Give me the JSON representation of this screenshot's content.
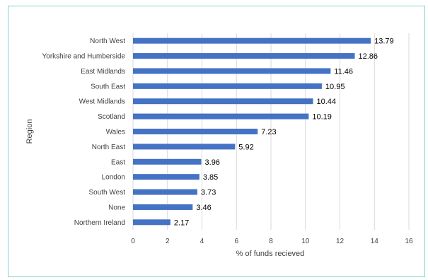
{
  "chart_data": {
    "type": "bar",
    "orientation": "horizontal",
    "xlabel": "% of funds recieved",
    "ylabel": "Region",
    "xlim": [
      0,
      16
    ],
    "x_ticks": [
      "0",
      "2",
      "4",
      "6",
      "8",
      "10",
      "12",
      "14",
      "16"
    ],
    "grid": true,
    "bar_color": "#4472c4",
    "categories": [
      "North West",
      "Yorkshire and Humberside",
      "East Midlands",
      "South East",
      "West Midlands",
      "Scotland",
      "Wales",
      "North East",
      "East",
      "London",
      "South West",
      "None",
      "Northern Ireland"
    ],
    "values": [
      13.79,
      12.86,
      11.46,
      10.95,
      10.44,
      10.19,
      7.23,
      5.92,
      3.96,
      3.85,
      3.73,
      3.46,
      2.17
    ],
    "value_labels": [
      "13.79",
      "12.86",
      "11.46",
      "10.95",
      "10.44",
      "10.19",
      "7.23",
      "5.92",
      "3.96",
      "3.85",
      "3.73",
      "3.46",
      "2.17"
    ]
  }
}
